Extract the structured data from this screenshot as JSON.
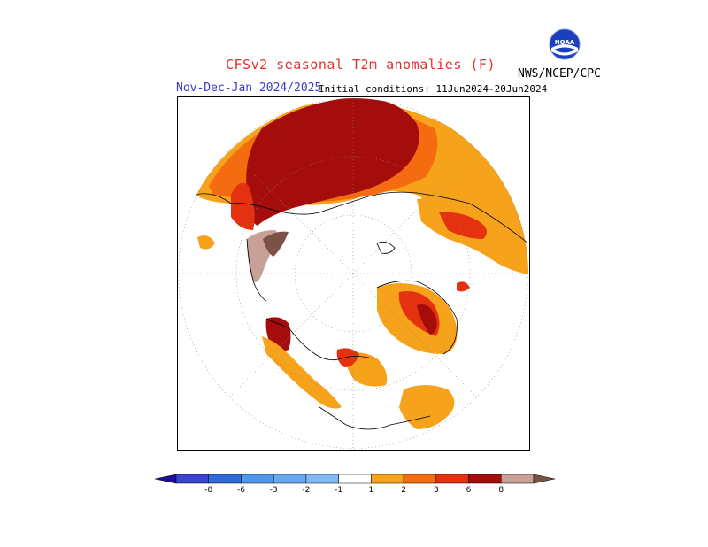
{
  "header": {
    "title": "CFSv2 seasonal T2m anomalies (F)",
    "season": "Nov-Dec-Jan 2024/2025",
    "initial_conditions": "Initial conditions: 11Jun2024-20Jun2024",
    "agency": "NWS/NCEP/CPC",
    "logo_text": "NOAA"
  },
  "colors": {
    "title": "#e0302a",
    "season": "#3a3ad0",
    "neg_8": "#1f0e9a",
    "neg_6": "#3c43cf",
    "neg_3": "#2e6bd8",
    "neg_2": "#4f97ea",
    "neg_1": "#82b8f3",
    "neutral": "#ffffff",
    "pos_1": "#f6a31b",
    "pos_2": "#f46b10",
    "pos_3": "#e43210",
    "pos_6": "#a50c0c",
    "pos_8": "#c8a097",
    "pos_over": "#7b5246"
  },
  "colorbar": {
    "labels": [
      "-8",
      "-6",
      "-3",
      "-2",
      "-1",
      "1",
      "2",
      "3",
      "6",
      "8"
    ],
    "bins": [
      {
        "color": "#3c43cf"
      },
      {
        "color": "#2e6bd8"
      },
      {
        "color": "#4f97ea"
      },
      {
        "color": "#6aa8ef"
      },
      {
        "color": "#82b8f3"
      },
      {
        "color": "#ffffff"
      },
      {
        "color": "#f6a31b"
      },
      {
        "color": "#f46b10"
      },
      {
        "color": "#e43210"
      },
      {
        "color": "#a50c0c"
      },
      {
        "color": "#c8a097"
      }
    ],
    "left_arrow_color": "#1f0e9a",
    "right_arrow_color": "#7b5246"
  }
}
